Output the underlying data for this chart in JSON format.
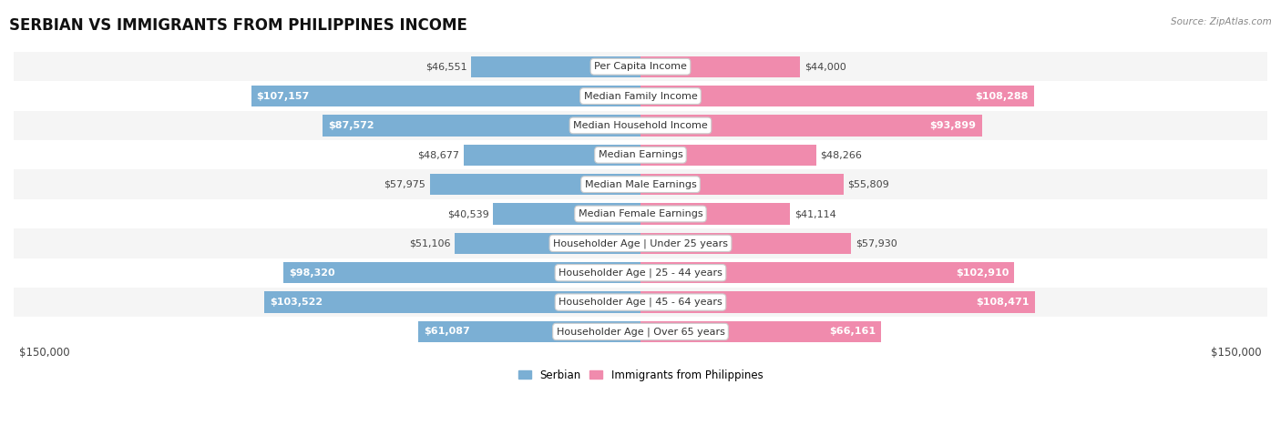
{
  "title": "SERBIAN VS IMMIGRANTS FROM PHILIPPINES INCOME",
  "source": "Source: ZipAtlas.com",
  "categories": [
    "Per Capita Income",
    "Median Family Income",
    "Median Household Income",
    "Median Earnings",
    "Median Male Earnings",
    "Median Female Earnings",
    "Householder Age | Under 25 years",
    "Householder Age | 25 - 44 years",
    "Householder Age | 45 - 64 years",
    "Householder Age | Over 65 years"
  ],
  "serbian_values": [
    46551,
    107157,
    87572,
    48677,
    57975,
    40539,
    51106,
    98320,
    103522,
    61087
  ],
  "philippines_values": [
    44000,
    108288,
    93899,
    48266,
    55809,
    41114,
    57930,
    102910,
    108471,
    66161
  ],
  "serbian_labels": [
    "$46,551",
    "$107,157",
    "$87,572",
    "$48,677",
    "$57,975",
    "$40,539",
    "$51,106",
    "$98,320",
    "$103,522",
    "$61,087"
  ],
  "philippines_labels": [
    "$44,000",
    "$108,288",
    "$93,899",
    "$48,266",
    "$55,809",
    "$41,114",
    "$57,930",
    "$102,910",
    "$108,471",
    "$66,161"
  ],
  "serbian_color": "#7bafd4",
  "philippines_color": "#f08bad",
  "max_value": 150000,
  "bar_height": 0.72,
  "row_bg_colors": [
    "#f5f5f5",
    "#ffffff",
    "#f5f5f5",
    "#ffffff",
    "#f5f5f5",
    "#ffffff",
    "#f5f5f5",
    "#ffffff",
    "#f5f5f5",
    "#ffffff"
  ],
  "legend_serbian": "Serbian",
  "legend_philippines": "Immigrants from Philippines",
  "title_fontsize": 12,
  "label_fontsize": 8,
  "category_fontsize": 8,
  "axis_label_fontsize": 8.5,
  "inside_threshold": 60000
}
